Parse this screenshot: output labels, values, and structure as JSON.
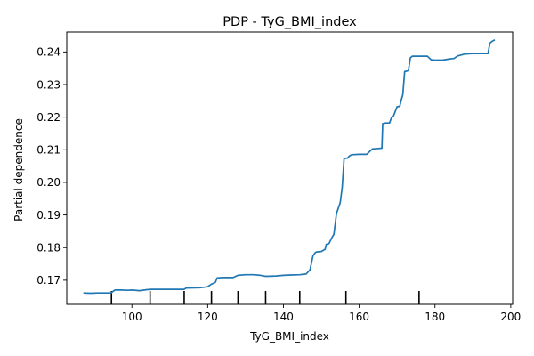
{
  "chart_data": {
    "type": "line",
    "title": "PDP - TyG_BMI_index",
    "xlabel": "TyG_BMI_index",
    "ylabel": "Partial dependence",
    "xlim": [
      82.8,
      200.5
    ],
    "ylim": [
      0.1626,
      0.2461
    ],
    "xticks": [
      100,
      120,
      140,
      160,
      180,
      200
    ],
    "yticks": [
      0.17,
      0.18,
      0.19,
      0.2,
      0.21,
      0.22,
      0.23,
      0.24
    ],
    "ytick_labels": [
      "0.17",
      "0.18",
      "0.19",
      "0.20",
      "0.21",
      "0.22",
      "0.23",
      "0.24"
    ],
    "grid": false,
    "line_color": "#1f77b4",
    "deciles": [
      94.6,
      104.8,
      113.8,
      121,
      128,
      135.3,
      144.3,
      156.5,
      175.8
    ],
    "series": [
      {
        "x": [
          87.2,
          89,
          91,
          94.5,
          94.8,
          95.5,
          97,
          99,
          100,
          102,
          104,
          105,
          108,
          112,
          113.8,
          114.3,
          118,
          120,
          121,
          122,
          122.5,
          124,
          126,
          126.7,
          128,
          130,
          132,
          134,
          135.3,
          138,
          140,
          142,
          144.3,
          146,
          147,
          147.8,
          148.5,
          149,
          150,
          151,
          151.3,
          152,
          153,
          153.3,
          154,
          155,
          155.5,
          156,
          157,
          157.3,
          158,
          160,
          162,
          163.5,
          164,
          166,
          166.2,
          167,
          168,
          168.5,
          169,
          170,
          170.7,
          171,
          171.5,
          172,
          172.5,
          173,
          173.5,
          174,
          175,
          176,
          178,
          179,
          180,
          182,
          184,
          185,
          186,
          188,
          190,
          192,
          194,
          194.5,
          195,
          195.8
        ],
        "y": [
          0.1661,
          0.166,
          0.1661,
          0.1661,
          0.1664,
          0.167,
          0.167,
          0.1669,
          0.167,
          0.1668,
          0.1671,
          0.1672,
          0.1672,
          0.1672,
          0.1672,
          0.1676,
          0.1677,
          0.168,
          0.1688,
          0.1693,
          0.1707,
          0.1708,
          0.1708,
          0.1708,
          0.1715,
          0.1717,
          0.1717,
          0.1715,
          0.1712,
          0.1713,
          0.1715,
          0.1716,
          0.1717,
          0.1719,
          0.1732,
          0.1775,
          0.1786,
          0.1787,
          0.1788,
          0.1795,
          0.181,
          0.1812,
          0.1835,
          0.184,
          0.1905,
          0.1938,
          0.1985,
          0.2073,
          0.2075,
          0.208,
          0.2085,
          0.2086,
          0.2086,
          0.2103,
          0.2103,
          0.2105,
          0.218,
          0.2182,
          0.2182,
          0.2198,
          0.2202,
          0.2232,
          0.2233,
          0.2248,
          0.2269,
          0.234,
          0.2341,
          0.2343,
          0.2382,
          0.2387,
          0.2387,
          0.2387,
          0.2387,
          0.2376,
          0.2375,
          0.2375,
          0.2379,
          0.238,
          0.2388,
          0.2394,
          0.2395,
          0.2395,
          0.2395,
          0.2427,
          0.2432,
          0.2437
        ]
      }
    ]
  }
}
